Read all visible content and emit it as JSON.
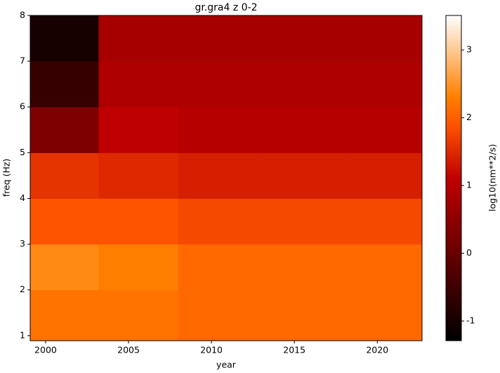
{
  "chart_data": {
    "type": "heatmap",
    "title": "gr.gra4 z 0-2",
    "x_label": "year",
    "y_label": "freq (Hz)",
    "colorbar_label": "log10(nm**2/s)",
    "xlim": [
      1999.07,
      2022.7
    ],
    "xticks": [
      2000,
      2005,
      2010,
      2015,
      2020
    ],
    "ylim": [
      0.89,
      8
    ],
    "yticks": [
      1,
      2,
      3,
      4,
      5,
      6,
      7,
      8
    ],
    "clim": [
      -1.29,
      3.51
    ],
    "cticks": [
      -1,
      0,
      1,
      2,
      3
    ],
    "colormap": "gist_heat",
    "x_edges": [
      1999.07,
      2003.2,
      2008,
      2013,
      2018,
      2022.7
    ],
    "y_edges": [
      0.89,
      2,
      3,
      4,
      5,
      6,
      7,
      8
    ],
    "z": [
      [
        2.2,
        2.2,
        2.1,
        2.1,
        2.1
      ],
      [
        2.4,
        2.3,
        2.1,
        2.1,
        2.1
      ],
      [
        1.9,
        1.9,
        1.8,
        1.8,
        1.8
      ],
      [
        1.6,
        1.5,
        1.4,
        1.4,
        1.4
      ],
      [
        0.3,
        1.1,
        1.0,
        1.0,
        1.0
      ],
      [
        -0.6,
        0.9,
        0.9,
        0.9,
        0.9
      ],
      [
        -1.0,
        0.8,
        0.8,
        0.8,
        0.8
      ]
    ]
  }
}
